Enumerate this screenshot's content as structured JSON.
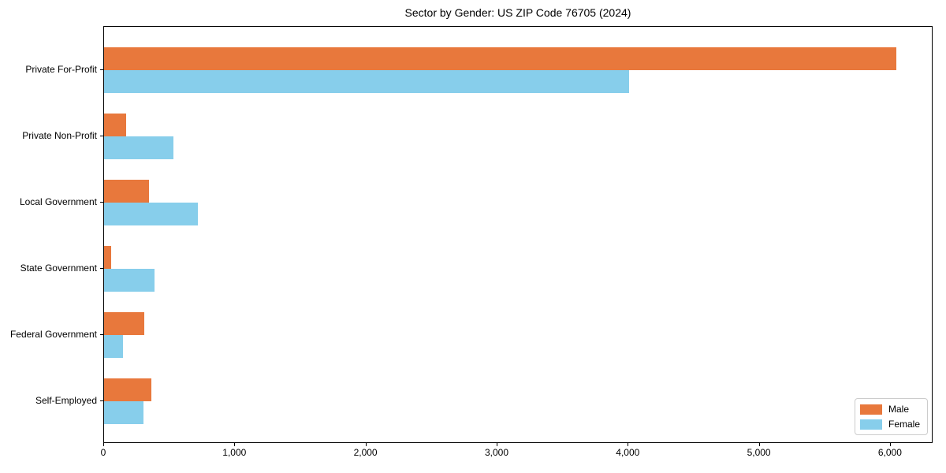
{
  "chart_data": {
    "type": "bar",
    "orientation": "horizontal",
    "title": "Sector by Gender: US ZIP Code 76705 (2024)",
    "categories": [
      "Private For-Profit",
      "Private Non-Profit",
      "Local Government",
      "State Government",
      "Federal Government",
      "Self-Employed"
    ],
    "series": [
      {
        "name": "Male",
        "color": "#E8783C",
        "values": [
          6040,
          170,
          340,
          55,
          305,
          360
        ]
      },
      {
        "name": "Female",
        "color": "#87CEEB",
        "values": [
          4005,
          530,
          715,
          385,
          145,
          300
        ]
      }
    ],
    "xlabel": "",
    "ylabel": "",
    "xlim": [
      0,
      6325
    ],
    "x_ticks": [
      0,
      1000,
      2000,
      3000,
      4000,
      5000,
      6000
    ],
    "x_tick_labels": [
      "0",
      "1,000",
      "2,000",
      "3,000",
      "4,000",
      "5,000",
      "6,000"
    ],
    "grid": false,
    "legend": {
      "position": "lower-right",
      "entries": [
        "Male",
        "Female"
      ]
    }
  }
}
